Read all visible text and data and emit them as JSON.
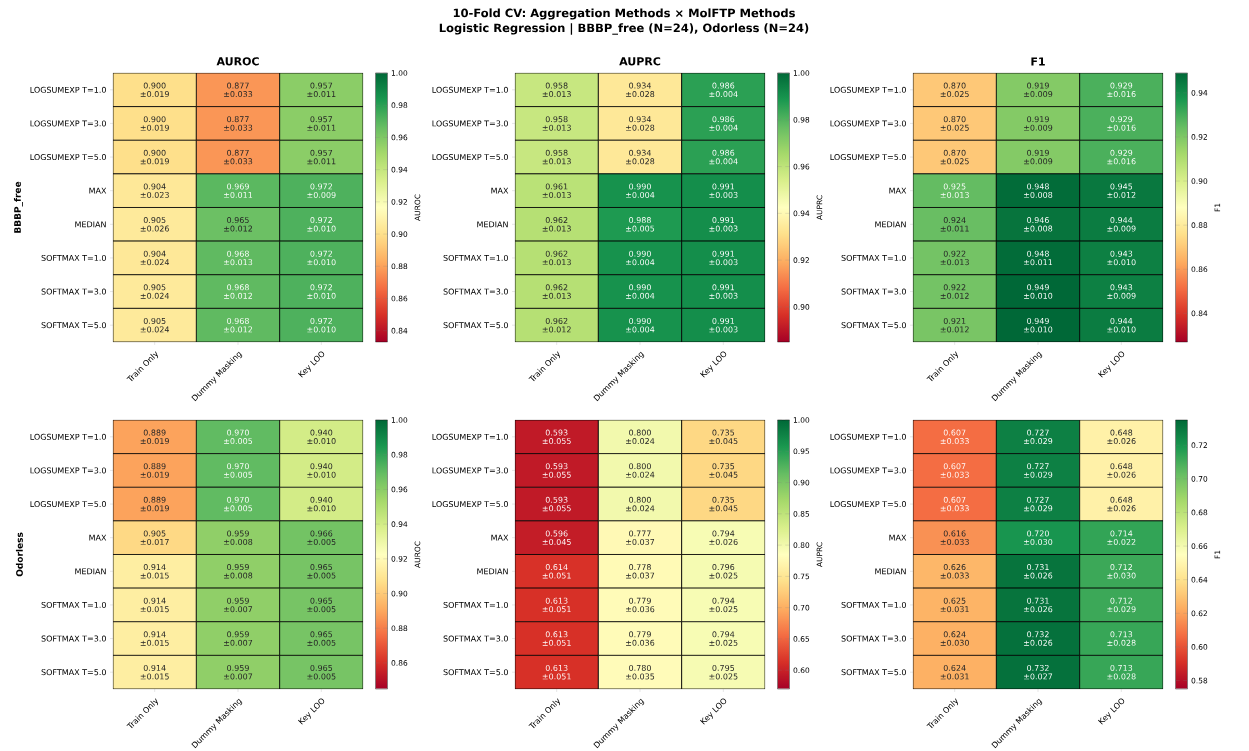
{
  "chart_data": [
    {
      "type": "heatmap",
      "title": "AUROC",
      "ylabel": "BBBP_free",
      "clabel": "AUROC",
      "annotations": [
        "10-Fold CV: Aggregation Methods × MolFTP Methods",
        "Logistic Regression | BBBP_free (N=24), Odorless (N=24)"
      ],
      "categories": [
        "Train Only",
        "Dummy Masking",
        "Key LOO"
      ],
      "y_categories": [
        "LOGSUMEXP T=1.0",
        "LOGSUMEXP T=3.0",
        "LOGSUMEXP T=5.0",
        "MAX",
        "MEDIAN",
        "SOFTMAX T=1.0",
        "SOFTMAX T=3.0",
        "SOFTMAX T=5.0"
      ],
      "cells": [
        [
          0.9,
          0.877,
          0.957
        ],
        [
          0.9,
          0.877,
          0.957
        ],
        [
          0.9,
          0.877,
          0.957
        ],
        [
          0.904,
          0.969,
          0.972
        ],
        [
          0.905,
          0.965,
          0.972
        ],
        [
          0.904,
          0.968,
          0.972
        ],
        [
          0.905,
          0.968,
          0.972
        ],
        [
          0.905,
          0.968,
          0.972
        ]
      ],
      "cell_labels": [
        [
          "0.900 ±0.019",
          "0.877 ±0.033",
          "0.957 ±0.011"
        ],
        [
          "0.900 ±0.019",
          "0.877 ±0.033",
          "0.957 ±0.011"
        ],
        [
          "0.900 ±0.019",
          "0.877 ±0.033",
          "0.957 ±0.011"
        ],
        [
          "0.904 ±0.023",
          "0.969 ±0.011",
          "0.972 ±0.009"
        ],
        [
          "0.905 ±0.026",
          "0.965 ±0.012",
          "0.972 ±0.010"
        ],
        [
          "0.904 ±0.024",
          "0.968 ±0.013",
          "0.972 ±0.010"
        ],
        [
          "0.905 ±0.024",
          "0.968 ±0.012",
          "0.972 ±0.010"
        ],
        [
          "0.905 ±0.024",
          "0.968 ±0.012",
          "0.972 ±0.010"
        ]
      ],
      "clim": [
        0.833,
        1.0
      ],
      "cticks": [
        {
          "value": 0.84,
          "label": "0.84"
        },
        {
          "value": 0.86,
          "label": "0.86"
        },
        {
          "value": 0.88,
          "label": "0.88"
        },
        {
          "value": 0.9,
          "label": "0.90"
        },
        {
          "value": 0.92,
          "label": "0.92"
        },
        {
          "value": 0.94,
          "label": "0.94"
        },
        {
          "value": 0.96,
          "label": "0.96"
        },
        {
          "value": 0.98,
          "label": "0.98"
        },
        {
          "value": 1.0,
          "label": "1.00"
        }
      ]
    },
    {
      "type": "heatmap",
      "title": "AUPRC",
      "clabel": "AUPRC",
      "categories": [
        "Train Only",
        "Dummy Masking",
        "Key LOO"
      ],
      "y_categories": [
        "LOGSUMEXP T=1.0",
        "LOGSUMEXP T=3.0",
        "LOGSUMEXP T=5.0",
        "MAX",
        "MEDIAN",
        "SOFTMAX T=1.0",
        "SOFTMAX T=3.0",
        "SOFTMAX T=5.0"
      ],
      "cells": [
        [
          0.958,
          0.934,
          0.986
        ],
        [
          0.958,
          0.934,
          0.986
        ],
        [
          0.958,
          0.934,
          0.986
        ],
        [
          0.961,
          0.99,
          0.991
        ],
        [
          0.962,
          0.988,
          0.991
        ],
        [
          0.962,
          0.99,
          0.991
        ],
        [
          0.962,
          0.99,
          0.991
        ],
        [
          0.962,
          0.99,
          0.991
        ]
      ],
      "cell_labels": [
        [
          "0.958 ±0.013",
          "0.934 ±0.028",
          "0.986 ±0.004"
        ],
        [
          "0.958 ±0.013",
          "0.934 ±0.028",
          "0.986 ±0.004"
        ],
        [
          "0.958 ±0.013",
          "0.934 ±0.028",
          "0.986 ±0.004"
        ],
        [
          "0.961 ±0.013",
          "0.990 ±0.004",
          "0.991 ±0.003"
        ],
        [
          "0.962 ±0.013",
          "0.988 ±0.005",
          "0.991 ±0.003"
        ],
        [
          "0.962 ±0.013",
          "0.990 ±0.004",
          "0.991 ±0.003"
        ],
        [
          "0.962 ±0.013",
          "0.990 ±0.004",
          "0.991 ±0.003"
        ],
        [
          "0.962 ±0.012",
          "0.990 ±0.004",
          "0.991 ±0.003"
        ]
      ],
      "clim": [
        0.885,
        1.0
      ],
      "cticks": [
        {
          "value": 0.9,
          "label": "0.90"
        },
        {
          "value": 0.92,
          "label": "0.92"
        },
        {
          "value": 0.94,
          "label": "0.94"
        },
        {
          "value": 0.96,
          "label": "0.96"
        },
        {
          "value": 0.98,
          "label": "0.98"
        },
        {
          "value": 1.0,
          "label": "1.00"
        }
      ]
    },
    {
      "type": "heatmap",
      "title": "F1",
      "clabel": "F1",
      "categories": [
        "Train Only",
        "Dummy Masking",
        "Key LOO"
      ],
      "y_categories": [
        "LOGSUMEXP T=1.0",
        "LOGSUMEXP T=3.0",
        "LOGSUMEXP T=5.0",
        "MAX",
        "MEDIAN",
        "SOFTMAX T=1.0",
        "SOFTMAX T=3.0",
        "SOFTMAX T=5.0"
      ],
      "cells": [
        [
          0.87,
          0.919,
          0.929
        ],
        [
          0.87,
          0.919,
          0.929
        ],
        [
          0.87,
          0.919,
          0.929
        ],
        [
          0.925,
          0.948,
          0.945
        ],
        [
          0.924,
          0.946,
          0.944
        ],
        [
          0.922,
          0.948,
          0.943
        ],
        [
          0.922,
          0.949,
          0.943
        ],
        [
          0.921,
          0.949,
          0.944
        ]
      ],
      "cell_labels": [
        [
          "0.870 ±0.025",
          "0.919 ±0.009",
          "0.929 ±0.016"
        ],
        [
          "0.870 ±0.025",
          "0.919 ±0.009",
          "0.929 ±0.016"
        ],
        [
          "0.870 ±0.025",
          "0.919 ±0.009",
          "0.929 ±0.016"
        ],
        [
          "0.925 ±0.013",
          "0.948 ±0.008",
          "0.945 ±0.012"
        ],
        [
          "0.924 ±0.011",
          "0.946 ±0.008",
          "0.944 ±0.009"
        ],
        [
          "0.922 ±0.013",
          "0.948 ±0.011",
          "0.943 ±0.010"
        ],
        [
          "0.922 ±0.012",
          "0.949 ±0.010",
          "0.943 ±0.009"
        ],
        [
          "0.921 ±0.012",
          "0.949 ±0.010",
          "0.944 ±0.010"
        ]
      ],
      "clim": [
        0.827,
        0.949
      ],
      "cticks": [
        {
          "value": 0.84,
          "label": "0.84"
        },
        {
          "value": 0.86,
          "label": "0.86"
        },
        {
          "value": 0.88,
          "label": "0.88"
        },
        {
          "value": 0.9,
          "label": "0.90"
        },
        {
          "value": 0.92,
          "label": "0.92"
        },
        {
          "value": 0.94,
          "label": "0.94"
        }
      ]
    },
    {
      "type": "heatmap",
      "ylabel": "Odorless",
      "clabel": "AUROC",
      "categories": [
        "Train Only",
        "Dummy Masking",
        "Key LOO"
      ],
      "y_categories": [
        "LOGSUMEXP T=1.0",
        "LOGSUMEXP T=3.0",
        "LOGSUMEXP T=5.0",
        "MAX",
        "MEDIAN",
        "SOFTMAX T=1.0",
        "SOFTMAX T=3.0",
        "SOFTMAX T=5.0"
      ],
      "cells": [
        [
          0.889,
          0.97,
          0.94
        ],
        [
          0.889,
          0.97,
          0.94
        ],
        [
          0.889,
          0.97,
          0.94
        ],
        [
          0.905,
          0.959,
          0.966
        ],
        [
          0.914,
          0.959,
          0.965
        ],
        [
          0.914,
          0.959,
          0.965
        ],
        [
          0.914,
          0.959,
          0.965
        ],
        [
          0.914,
          0.959,
          0.965
        ]
      ],
      "cell_labels": [
        [
          "0.889 ±0.019",
          "0.970 ±0.005",
          "0.940 ±0.010"
        ],
        [
          "0.889 ±0.019",
          "0.970 ±0.005",
          "0.940 ±0.010"
        ],
        [
          "0.889 ±0.019",
          "0.970 ±0.005",
          "0.940 ±0.010"
        ],
        [
          "0.905 ±0.017",
          "0.959 ±0.008",
          "0.966 ±0.005"
        ],
        [
          "0.914 ±0.015",
          "0.959 ±0.008",
          "0.965 ±0.005"
        ],
        [
          "0.914 ±0.015",
          "0.959 ±0.007",
          "0.965 ±0.005"
        ],
        [
          "0.914 ±0.015",
          "0.959 ±0.007",
          "0.965 ±0.005"
        ],
        [
          "0.914 ±0.015",
          "0.959 ±0.007",
          "0.965 ±0.005"
        ]
      ],
      "clim": [
        0.845,
        1.0
      ],
      "cticks": [
        {
          "value": 0.86,
          "label": "0.86"
        },
        {
          "value": 0.88,
          "label": "0.88"
        },
        {
          "value": 0.9,
          "label": "0.90"
        },
        {
          "value": 0.92,
          "label": "0.92"
        },
        {
          "value": 0.94,
          "label": "0.94"
        },
        {
          "value": 0.96,
          "label": "0.96"
        },
        {
          "value": 0.98,
          "label": "0.98"
        },
        {
          "value": 1.0,
          "label": "1.00"
        }
      ]
    },
    {
      "type": "heatmap",
      "clabel": "AUPRC",
      "categories": [
        "Train Only",
        "Dummy Masking",
        "Key LOO"
      ],
      "y_categories": [
        "LOGSUMEXP T=1.0",
        "LOGSUMEXP T=3.0",
        "LOGSUMEXP T=5.0",
        "MAX",
        "MEDIAN",
        "SOFTMAX T=1.0",
        "SOFTMAX T=3.0",
        "SOFTMAX T=5.0"
      ],
      "cells": [
        [
          0.593,
          0.8,
          0.735
        ],
        [
          0.593,
          0.8,
          0.735
        ],
        [
          0.593,
          0.8,
          0.735
        ],
        [
          0.596,
          0.777,
          0.794
        ],
        [
          0.614,
          0.778,
          0.796
        ],
        [
          0.613,
          0.779,
          0.794
        ],
        [
          0.613,
          0.779,
          0.794
        ],
        [
          0.613,
          0.78,
          0.795
        ]
      ],
      "cell_labels": [
        [
          "0.593 ±0.055",
          "0.800 ±0.024",
          "0.735 ±0.045"
        ],
        [
          "0.593 ±0.055",
          "0.800 ±0.024",
          "0.735 ±0.045"
        ],
        [
          "0.593 ±0.055",
          "0.800 ±0.024",
          "0.735 ±0.045"
        ],
        [
          "0.596 ±0.045",
          "0.777 ±0.037",
          "0.794 ±0.026"
        ],
        [
          "0.614 ±0.051",
          "0.778 ±0.037",
          "0.796 ±0.025"
        ],
        [
          "0.613 ±0.051",
          "0.779 ±0.036",
          "0.794 ±0.025"
        ],
        [
          "0.613 ±0.051",
          "0.779 ±0.036",
          "0.794 ±0.025"
        ],
        [
          "0.613 ±0.051",
          "0.780 ±0.035",
          "0.795 ±0.025"
        ]
      ],
      "clim": [
        0.57,
        1.0
      ],
      "cticks": [
        {
          "value": 0.6,
          "label": "0.60"
        },
        {
          "value": 0.65,
          "label": "0.65"
        },
        {
          "value": 0.7,
          "label": "0.70"
        },
        {
          "value": 0.75,
          "label": "0.75"
        },
        {
          "value": 0.8,
          "label": "0.80"
        },
        {
          "value": 0.85,
          "label": "0.85"
        },
        {
          "value": 0.9,
          "label": "0.90"
        },
        {
          "value": 0.95,
          "label": "0.95"
        },
        {
          "value": 1.0,
          "label": "1.00"
        }
      ]
    },
    {
      "type": "heatmap",
      "clabel": "F1",
      "categories": [
        "Train Only",
        "Dummy Masking",
        "Key LOO"
      ],
      "y_categories": [
        "LOGSUMEXP T=1.0",
        "LOGSUMEXP T=3.0",
        "LOGSUMEXP T=5.0",
        "MAX",
        "MEDIAN",
        "SOFTMAX T=1.0",
        "SOFTMAX T=3.0",
        "SOFTMAX T=5.0"
      ],
      "cells": [
        [
          0.607,
          0.727,
          0.648
        ],
        [
          0.607,
          0.727,
          0.648
        ],
        [
          0.607,
          0.727,
          0.648
        ],
        [
          0.616,
          0.72,
          0.714
        ],
        [
          0.626,
          0.731,
          0.712
        ],
        [
          0.625,
          0.731,
          0.712
        ],
        [
          0.624,
          0.732,
          0.713
        ],
        [
          0.624,
          0.732,
          0.713
        ]
      ],
      "cell_labels": [
        [
          "0.607 ±0.033",
          "0.727 ±0.029",
          "0.648 ±0.026"
        ],
        [
          "0.607 ±0.033",
          "0.727 ±0.029",
          "0.648 ±0.026"
        ],
        [
          "0.607 ±0.033",
          "0.727 ±0.029",
          "0.648 ±0.026"
        ],
        [
          "0.616 ±0.033",
          "0.720 ±0.030",
          "0.714 ±0.022"
        ],
        [
          "0.626 ±0.033",
          "0.731 ±0.026",
          "0.712 ±0.030"
        ],
        [
          "0.625 ±0.031",
          "0.731 ±0.026",
          "0.712 ±0.029"
        ],
        [
          "0.624 ±0.030",
          "0.732 ±0.026",
          "0.713 ±0.028"
        ],
        [
          "0.624 ±0.031",
          "0.732 ±0.027",
          "0.713 ±0.028"
        ]
      ],
      "clim": [
        0.575,
        0.735
      ],
      "cticks": [
        {
          "value": 0.58,
          "label": "0.58"
        },
        {
          "value": 0.6,
          "label": "0.60"
        },
        {
          "value": 0.62,
          "label": "0.62"
        },
        {
          "value": 0.64,
          "label": "0.64"
        },
        {
          "value": 0.66,
          "label": "0.66"
        },
        {
          "value": 0.68,
          "label": "0.68"
        },
        {
          "value": 0.7,
          "label": "0.70"
        },
        {
          "value": 0.72,
          "label": "0.72"
        }
      ]
    }
  ]
}
